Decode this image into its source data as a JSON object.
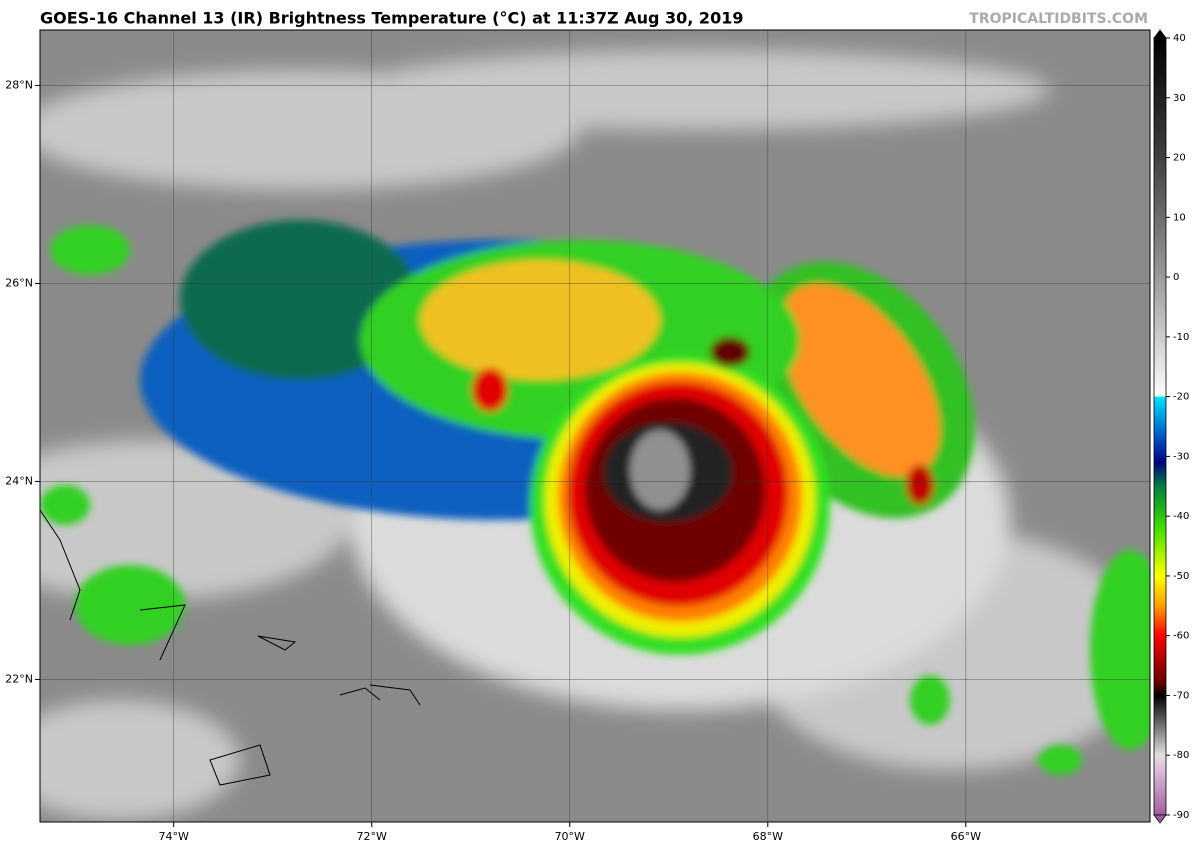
{
  "map": {
    "title": "GOES-16 Channel 13 (IR) Brightness Temperature (°C) at 11:37Z Aug 30, 2019",
    "credit": "TROPICALTIDBITS.COM",
    "xlim": [
      -75.35,
      -64.14
    ],
    "ylim": [
      20.56,
      28.56
    ],
    "xticks": [
      {
        "value": -74,
        "label": "74°W"
      },
      {
        "value": -72,
        "label": "72°W"
      },
      {
        "value": -70,
        "label": "70°W"
      },
      {
        "value": -68,
        "label": "68°W"
      },
      {
        "value": -66,
        "label": "66°W"
      }
    ],
    "yticks": [
      {
        "value": 22,
        "label": "22°N"
      },
      {
        "value": 24,
        "label": "24°N"
      },
      {
        "value": 26,
        "label": "26°N"
      },
      {
        "value": 28,
        "label": "28°N"
      }
    ],
    "colorbar": {
      "lim": [
        -90,
        40
      ],
      "ticks": [
        40,
        30,
        20,
        10,
        0,
        -10,
        -20,
        -30,
        -40,
        -50,
        -60,
        -70,
        -80,
        -90
      ],
      "stops": [
        {
          "value": 40,
          "color": "#000000"
        },
        {
          "value": 20,
          "color": "#404040"
        },
        {
          "value": 0,
          "color": "#9a9a9a"
        },
        {
          "value": -20,
          "color": "#ffffff"
        },
        {
          "value": -20,
          "color": "#00e5ff"
        },
        {
          "value": -27,
          "color": "#0050c0"
        },
        {
          "value": -31,
          "color": "#000080"
        },
        {
          "value": -35,
          "color": "#008040"
        },
        {
          "value": -42,
          "color": "#40e000"
        },
        {
          "value": -50,
          "color": "#ffff00"
        },
        {
          "value": -55,
          "color": "#ffa000"
        },
        {
          "value": -60,
          "color": "#ff0000"
        },
        {
          "value": -68,
          "color": "#600000"
        },
        {
          "value": -70,
          "color": "#000000"
        },
        {
          "value": -80,
          "color": "#e0e0e0"
        },
        {
          "value": -82,
          "color": "#e0c0e0"
        },
        {
          "value": -90,
          "color": "#a060a0"
        }
      ]
    }
  }
}
